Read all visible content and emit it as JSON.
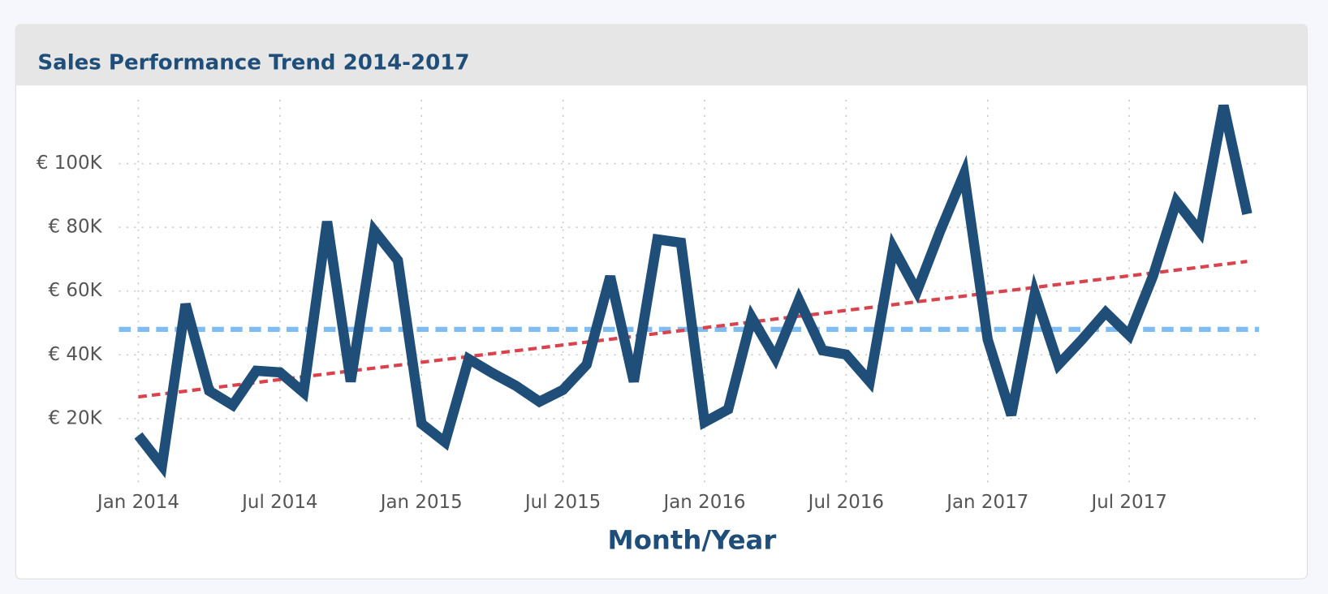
{
  "chart_data": {
    "type": "line",
    "title": "Sales Performance Trend 2014-2017",
    "x_label": "Month/Year",
    "x": [
      "2014-01",
      "2014-02",
      "2014-03",
      "2014-04",
      "2014-05",
      "2014-06",
      "2014-07",
      "2014-08",
      "2014-09",
      "2014-10",
      "2014-11",
      "2014-12",
      "2015-01",
      "2015-02",
      "2015-03",
      "2015-04",
      "2015-05",
      "2015-06",
      "2015-07",
      "2015-08",
      "2015-09",
      "2015-10",
      "2015-11",
      "2015-12",
      "2016-01",
      "2016-02",
      "2016-03",
      "2016-04",
      "2016-05",
      "2016-06",
      "2016-07",
      "2016-08",
      "2016-09",
      "2016-10",
      "2016-11",
      "2016-12",
      "2017-01",
      "2017-02",
      "2017-03",
      "2017-04",
      "2017-05",
      "2017-06",
      "2017-07",
      "2017-08",
      "2017-09",
      "2017-10",
      "2017-11",
      "2017-12"
    ],
    "series": [
      {
        "color": "#1f4e79",
        "values": [
          14700,
          5200,
          55900,
          28700,
          24200,
          35000,
          34500,
          28200,
          81800,
          31600,
          78900,
          69600,
          18400,
          12600,
          38700,
          34300,
          30300,
          25300,
          29000,
          36900,
          64600,
          31600,
          76200,
          75200,
          18900,
          22900,
          51700,
          39000,
          57200,
          41400,
          40100,
          31600,
          73600,
          59900,
          79100,
          96800,
          44800,
          21100,
          59300,
          36900,
          44800,
          53300,
          46100,
          64600,
          88100,
          78600,
          118200,
          84200
        ]
      }
    ],
    "average_line": {
      "value": 48000,
      "color": "#7fbcf2"
    },
    "trend_line": {
      "start": 26800,
      "end": 69300,
      "color": "#d9434e"
    },
    "ylim": [
      0,
      120000
    ],
    "yticks": [
      {
        "value": 20000,
        "label": "€ 20K"
      },
      {
        "value": 40000,
        "label": "€ 40K"
      },
      {
        "value": 60000,
        "label": "€ 60K"
      },
      {
        "value": 80000,
        "label": "€ 80K"
      },
      {
        "value": 100000,
        "label": "€ 100K"
      }
    ],
    "xticks": [
      {
        "value": "2014-01",
        "label": "Jan 2014"
      },
      {
        "value": "2014-07",
        "label": "Jul 2014"
      },
      {
        "value": "2015-01",
        "label": "Jan 2015"
      },
      {
        "value": "2015-07",
        "label": "Jul 2015"
      },
      {
        "value": "2016-01",
        "label": "Jan 2016"
      },
      {
        "value": "2016-07",
        "label": "Jul 2016"
      },
      {
        "value": "2017-01",
        "label": "Jan 2017"
      },
      {
        "value": "2017-07",
        "label": "Jul 2017"
      }
    ],
    "grid": true
  }
}
